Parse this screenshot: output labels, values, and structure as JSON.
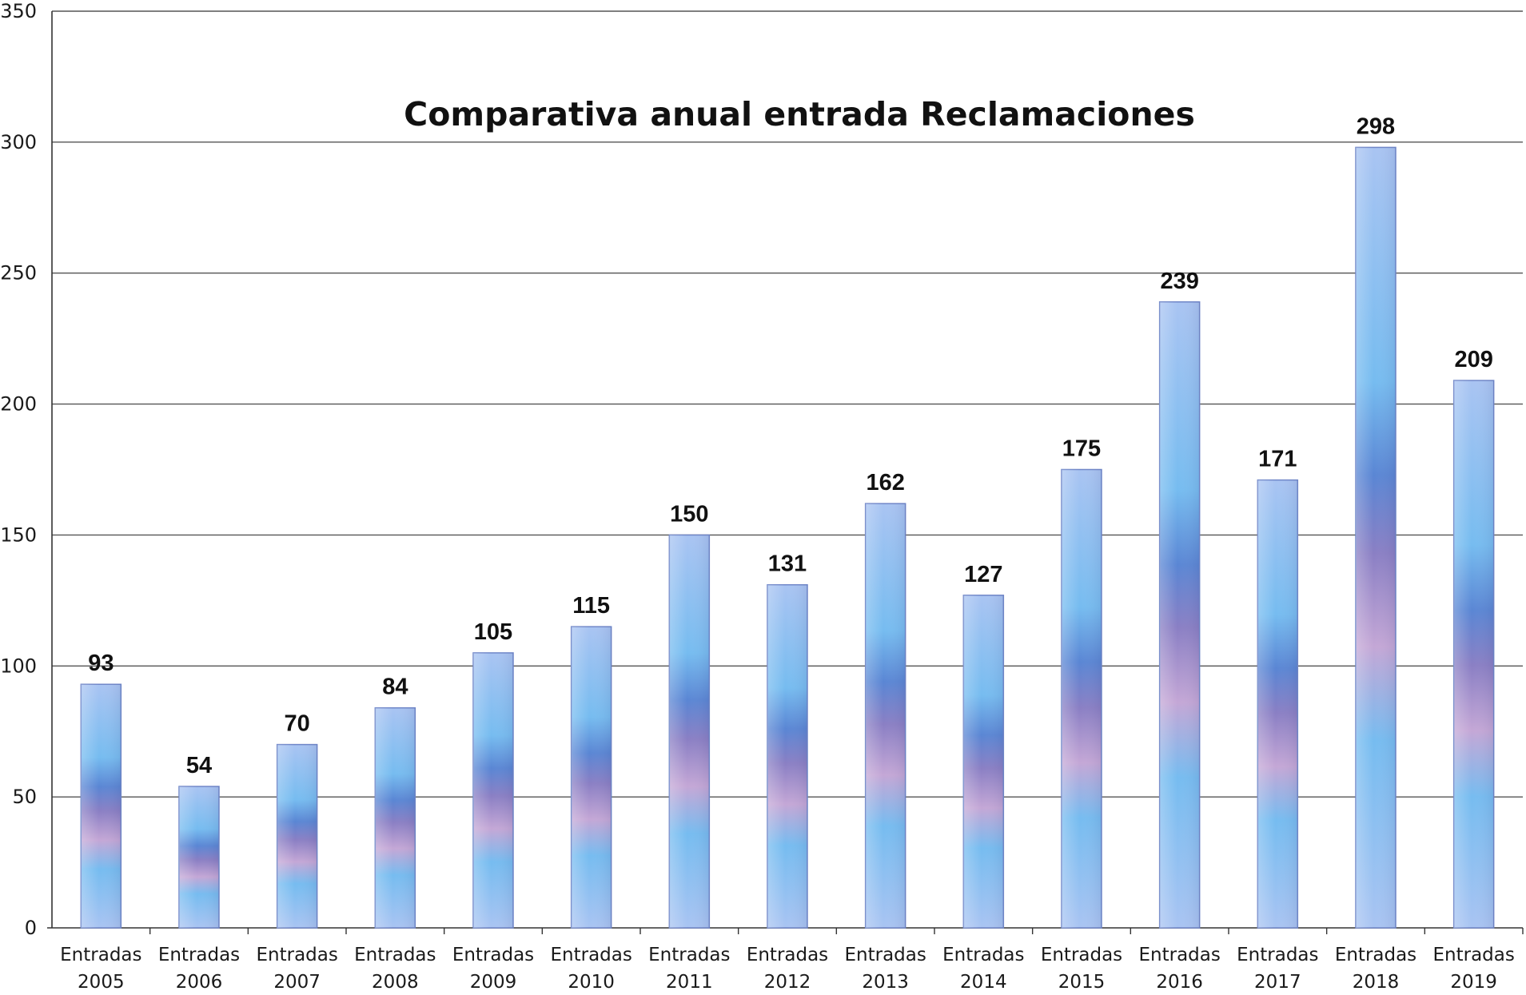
{
  "chart_data": {
    "type": "bar",
    "title": "Comparativa anual entrada Reclamaciones",
    "xlabel": "",
    "ylabel": "",
    "ylim": [
      0,
      350
    ],
    "yticks": [
      0,
      50,
      100,
      150,
      200,
      250,
      300,
      350
    ],
    "grid": true,
    "legend": "none",
    "categories": [
      [
        "Entradas",
        "2005"
      ],
      [
        "Entradas",
        "2006"
      ],
      [
        "Entradas",
        "2007"
      ],
      [
        "Entradas",
        "2008"
      ],
      [
        "Entradas",
        "2009"
      ],
      [
        "Entradas",
        "2010"
      ],
      [
        "Entradas",
        "2011"
      ],
      [
        "Entradas",
        "2012"
      ],
      [
        "Entradas",
        "2013"
      ],
      [
        "Entradas",
        "2014"
      ],
      [
        "Entradas",
        "2015"
      ],
      [
        "Entradas",
        "2016"
      ],
      [
        "Entradas",
        "2017"
      ],
      [
        "Entradas",
        "2018"
      ],
      [
        "Entradas",
        "2019"
      ]
    ],
    "values": [
      93,
      54,
      70,
      84,
      105,
      115,
      150,
      131,
      162,
      127,
      175,
      239,
      171,
      298,
      209
    ],
    "colors": {
      "bar_light": "#a9c4f2",
      "bar_sky": "#76bcf0",
      "bar_blue": "#5a86d4",
      "bar_purple": "#8a7fc4",
      "bar_pink": "#c4a7d6",
      "bar_outline": "#6f86c8",
      "gridline": "#555555",
      "axis": "#333333",
      "text": "#111111"
    }
  }
}
